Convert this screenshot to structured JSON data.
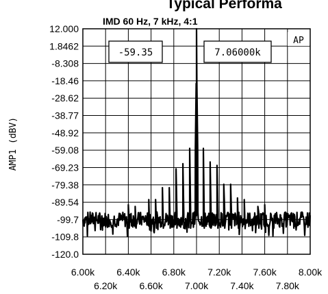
{
  "header": {
    "title": "Typical Performa",
    "subtitle": "IMD 60 Hz, 7 kHz, 4:1"
  },
  "chart_data": {
    "type": "line",
    "ylabel": "AMP1 (dBV)",
    "xlabel": "",
    "xlim": [
      6000,
      8000
    ],
    "ylim": [
      -120.0,
      12.0
    ],
    "y_tick_labels": [
      "12.000",
      "1.8462",
      "-8.308",
      "-18.46",
      "-28.62",
      "-38.77",
      "-48.92",
      "-59.08",
      "-69.23",
      "-79.38",
      "-89.54",
      "-99.7",
      "-109.8",
      "-120.0"
    ],
    "x_ticks": [
      6000,
      6200,
      6400,
      6600,
      6800,
      7000,
      7200,
      7400,
      7600,
      7800,
      8000
    ],
    "x_tick_labels": [
      "6.00k",
      "6.20k",
      "6.40k",
      "6.60k",
      "6.80k",
      "7.00k",
      "7.20k",
      "7.40k",
      "7.60k",
      "7.80k",
      "8.00k"
    ],
    "grid": true,
    "noise_floor": -99.7,
    "main_peak": {
      "x": 7000,
      "y": 12.0
    },
    "peaks": [
      {
        "x": 6400,
        "y": -91
      },
      {
        "x": 6460,
        "y": -92
      },
      {
        "x": 6580,
        "y": -88
      },
      {
        "x": 6640,
        "y": -88
      },
      {
        "x": 6700,
        "y": -81
      },
      {
        "x": 6760,
        "y": -81
      },
      {
        "x": 6820,
        "y": -70
      },
      {
        "x": 6880,
        "y": -67
      },
      {
        "x": 6940,
        "y": -58
      },
      {
        "x": 7060,
        "y": -58
      },
      {
        "x": 7120,
        "y": -66
      },
      {
        "x": 7180,
        "y": -68
      },
      {
        "x": 7240,
        "y": -79
      },
      {
        "x": 7300,
        "y": -79
      },
      {
        "x": 7360,
        "y": -87
      },
      {
        "x": 7420,
        "y": -88
      },
      {
        "x": 7540,
        "y": -92
      },
      {
        "x": 7600,
        "y": -91
      }
    ],
    "annotations": {
      "level_readout": "-59.35",
      "freq_readout": "7.06000k",
      "logo": "AP"
    }
  }
}
